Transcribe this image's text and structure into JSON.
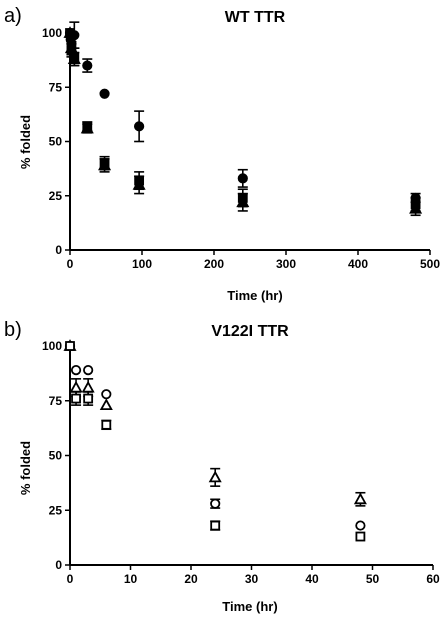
{
  "chart_data": [
    {
      "panel_label": "a)",
      "type": "scatter",
      "title": "WT TTR",
      "xlabel": "Time (hr)",
      "ylabel": "% folded",
      "xlim": [
        0,
        500
      ],
      "ylim": [
        0,
        100
      ],
      "xticks": [
        0,
        100,
        200,
        300,
        400,
        500
      ],
      "yticks": [
        0,
        25,
        50,
        75,
        100
      ],
      "grid": false,
      "series": [
        {
          "marker": "circle-filled",
          "points": [
            {
              "x": 0,
              "y": 100,
              "err": 0
            },
            {
              "x": 1,
              "y": 97,
              "err": 0
            },
            {
              "x": 2,
              "y": 95,
              "err": 0
            },
            {
              "x": 4,
              "y": 99,
              "err": 0
            },
            {
              "x": 6,
              "y": 99,
              "err": 6
            },
            {
              "x": 24,
              "y": 85,
              "err": 3
            },
            {
              "x": 48,
              "y": 72,
              "err": 0
            },
            {
              "x": 96,
              "y": 57,
              "err": 7
            },
            {
              "x": 240,
              "y": 33,
              "err": 4
            },
            {
              "x": 480,
              "y": 24,
              "err": 2
            }
          ]
        },
        {
          "marker": "square-filled",
          "points": [
            {
              "x": 0,
              "y": 100,
              "err": 0
            },
            {
              "x": 2,
              "y": 92,
              "err": 3
            },
            {
              "x": 6,
              "y": 89,
              "err": 4
            },
            {
              "x": 24,
              "y": 57,
              "err": 2
            },
            {
              "x": 48,
              "y": 40,
              "err": 3
            },
            {
              "x": 96,
              "y": 32,
              "err": 4
            },
            {
              "x": 240,
              "y": 24,
              "err": 4
            },
            {
              "x": 480,
              "y": 21,
              "err": 3
            }
          ]
        },
        {
          "marker": "triangle-filled",
          "points": [
            {
              "x": 0,
              "y": 100,
              "err": 0
            },
            {
              "x": 2,
              "y": 93,
              "err": 3
            },
            {
              "x": 6,
              "y": 88,
              "err": 3
            },
            {
              "x": 24,
              "y": 56,
              "err": 2
            },
            {
              "x": 48,
              "y": 39,
              "err": 3
            },
            {
              "x": 96,
              "y": 30,
              "err": 4
            },
            {
              "x": 240,
              "y": 22,
              "err": 4
            },
            {
              "x": 480,
              "y": 19,
              "err": 3
            }
          ]
        }
      ]
    },
    {
      "panel_label": "b)",
      "type": "scatter",
      "title": "V122I TTR",
      "xlabel": "Time (hr)",
      "ylabel": "% folded",
      "xlim": [
        0,
        60
      ],
      "ylim": [
        0,
        100
      ],
      "xticks": [
        0,
        10,
        20,
        30,
        40,
        50,
        60
      ],
      "yticks": [
        0,
        25,
        50,
        75,
        100
      ],
      "grid": false,
      "series": [
        {
          "marker": "circle-open",
          "points": [
            {
              "x": 0,
              "y": 100,
              "err": 0
            },
            {
              "x": 1,
              "y": 89,
              "err": 0
            },
            {
              "x": 3,
              "y": 89,
              "err": 0
            },
            {
              "x": 6,
              "y": 78,
              "err": 0
            },
            {
              "x": 24,
              "y": 28,
              "err": 2
            },
            {
              "x": 48,
              "y": 18,
              "err": 0
            }
          ]
        },
        {
          "marker": "triangle-open",
          "points": [
            {
              "x": 0,
              "y": 100,
              "err": 0
            },
            {
              "x": 1,
              "y": 81,
              "err": 4
            },
            {
              "x": 3,
              "y": 81,
              "err": 4
            },
            {
              "x": 6,
              "y": 73,
              "err": 0
            },
            {
              "x": 24,
              "y": 40,
              "err": 4
            },
            {
              "x": 48,
              "y": 30,
              "err": 3
            }
          ]
        },
        {
          "marker": "square-open",
          "points": [
            {
              "x": 0,
              "y": 100,
              "err": 0
            },
            {
              "x": 1,
              "y": 76,
              "err": 3
            },
            {
              "x": 3,
              "y": 76,
              "err": 3
            },
            {
              "x": 6,
              "y": 64,
              "err": 2
            },
            {
              "x": 24,
              "y": 18,
              "err": 2
            },
            {
              "x": 48,
              "y": 13,
              "err": 0
            }
          ]
        }
      ]
    }
  ]
}
